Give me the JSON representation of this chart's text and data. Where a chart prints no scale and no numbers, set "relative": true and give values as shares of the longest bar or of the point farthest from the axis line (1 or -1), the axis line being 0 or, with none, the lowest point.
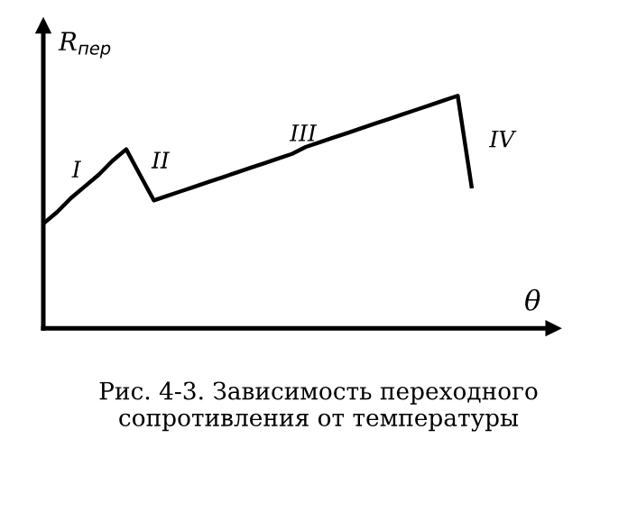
{
  "chart_data": {
    "type": "line",
    "relative": true,
    "xlabel": "θ",
    "ylabel": "R$_{пер}$",
    "categories": [
      null,
      null,
      null,
      null,
      null,
      null,
      null,
      null,
      null,
      null,
      null,
      null,
      null,
      null,
      null,
      null,
      null,
      null,
      null,
      null,
      null,
      null,
      null,
      null,
      null,
      null,
      null,
      null,
      null,
      null,
      null,
      null
    ],
    "series": [
      {
        "color": "#000000",
        "values": [
          0.45,
          0.5,
          0.56,
          0.61,
          0.66,
          0.72,
          0.77,
          0.66,
          0.55,
          0.57,
          0.59,
          0.61,
          0.63,
          0.65,
          0.67,
          0.69,
          0.71,
          0.73,
          0.75,
          0.78,
          0.8,
          0.82,
          0.84,
          0.86,
          0.88,
          0.9,
          0.92,
          0.94,
          0.96,
          0.98,
          1.0,
          0.61
        ]
      }
    ],
    "annotations": [
      "I",
      "II",
      "III",
      "IV",
      "Рис. 4-3. Зависимость переходного сопротивления от температуры"
    ],
    "marker": "none",
    "line_style": "solid"
  }
}
